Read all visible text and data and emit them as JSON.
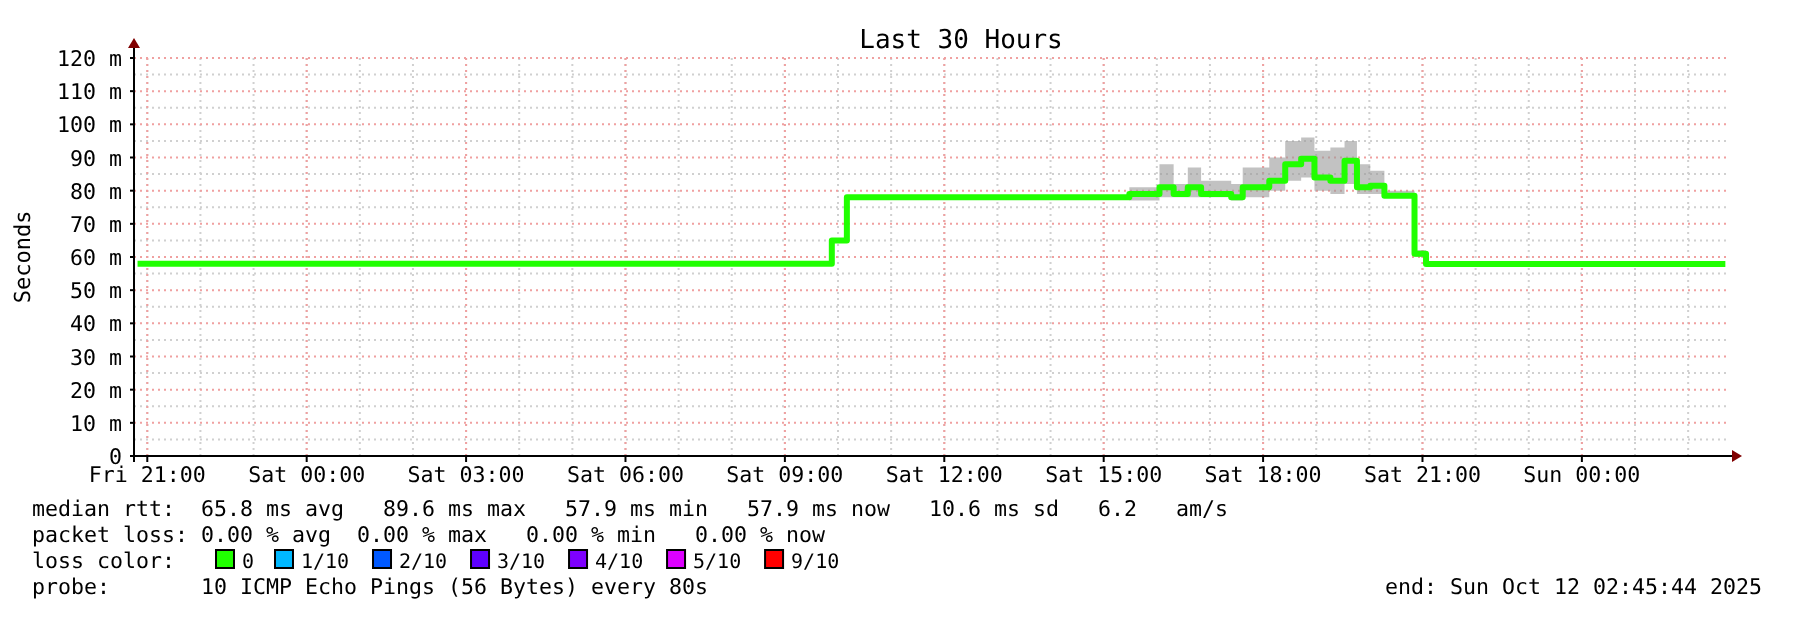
{
  "chart_data": {
    "type": "step",
    "title": "Last 30 Hours",
    "ylabel": "Seconds",
    "x": [
      "2025-10-10T20:49",
      "2025-10-11T09:53",
      "2025-10-11T10:10",
      "2025-10-11T15:29",
      "2025-10-11T16:03",
      "2025-10-11T16:19",
      "2025-10-11T16:35",
      "2025-10-11T16:50",
      "2025-10-11T17:24",
      "2025-10-11T17:37",
      "2025-10-11T18:07",
      "2025-10-11T18:25",
      "2025-10-11T18:43",
      "2025-10-11T18:58",
      "2025-10-11T19:16",
      "2025-10-11T19:32",
      "2025-10-11T19:46",
      "2025-10-11T20:01",
      "2025-10-11T20:17",
      "2025-10-11T20:51",
      "2025-10-11T21:04",
      "2025-10-12T02:42"
    ],
    "series": [
      {
        "name": "0",
        "color": "#20ff00",
        "values": [
          58,
          65,
          78,
          79,
          81,
          79,
          81,
          79,
          78,
          81,
          83,
          88,
          89.6,
          84,
          83,
          89,
          81,
          81.5,
          78.5,
          61,
          57.9,
          57.9
        ],
        "lower": [
          58,
          65,
          78,
          77,
          78,
          78,
          78,
          78,
          77,
          78,
          80,
          83,
          84,
          80,
          79,
          82,
          79,
          79,
          78,
          60,
          57.9,
          57.9
        ],
        "upper": [
          58,
          65,
          78,
          81,
          88,
          82,
          87,
          83,
          82,
          87,
          90,
          95,
          96,
          92,
          93,
          95,
          88,
          86,
          80,
          62,
          57.9,
          57.9
        ]
      },
      {
        "name": "1/10",
        "color": "#00b8ff",
        "values": [
          null,
          null,
          null,
          null,
          null,
          null,
          null,
          null,
          null,
          null,
          null,
          null,
          null,
          null,
          null,
          null,
          null,
          null,
          null,
          null,
          null,
          null
        ]
      },
      {
        "name": "2/10",
        "color": "#0059ff",
        "values": [
          null,
          null,
          null,
          null,
          null,
          null,
          null,
          null,
          null,
          null,
          null,
          null,
          null,
          null,
          null,
          null,
          null,
          null,
          null,
          null,
          null,
          null
        ]
      },
      {
        "name": "3/10",
        "color": "#5e00ff",
        "values": [
          null,
          null,
          null,
          null,
          null,
          null,
          null,
          null,
          null,
          null,
          null,
          null,
          null,
          null,
          null,
          null,
          null,
          null,
          null,
          null,
          null,
          null
        ]
      },
      {
        "name": "4/10",
        "color": "#7e00ff",
        "values": [
          null,
          null,
          null,
          null,
          null,
          null,
          null,
          null,
          null,
          null,
          null,
          null,
          null,
          null,
          null,
          null,
          null,
          null,
          null,
          null,
          null,
          null
        ]
      },
      {
        "name": "5/10",
        "color": "#dd00ff",
        "values": [
          null,
          null,
          null,
          null,
          null,
          null,
          null,
          null,
          null,
          null,
          null,
          null,
          null,
          null,
          null,
          null,
          null,
          null,
          null,
          null,
          null,
          null
        ]
      },
      {
        "name": "9/10",
        "color": "#ff0000",
        "values": [
          null,
          null,
          null,
          null,
          null,
          null,
          null,
          null,
          null,
          null,
          null,
          null,
          null,
          null,
          null,
          null,
          null,
          null,
          null,
          null,
          null,
          null
        ]
      }
    ],
    "legend_title": "loss color:",
    "legend": "bottom",
    "xlim": [
      "2025-10-10T20:45",
      "2025-10-12T02:45"
    ],
    "xticks": [
      {
        "value": "2025-10-10T21:00",
        "label": "Fri 21:00"
      },
      {
        "value": "2025-10-11T00:00",
        "label": "Sat 00:00"
      },
      {
        "value": "2025-10-11T03:00",
        "label": "Sat 03:00"
      },
      {
        "value": "2025-10-11T06:00",
        "label": "Sat 06:00"
      },
      {
        "value": "2025-10-11T09:00",
        "label": "Sat 09:00"
      },
      {
        "value": "2025-10-11T12:00",
        "label": "Sat 12:00"
      },
      {
        "value": "2025-10-11T15:00",
        "label": "Sat 15:00"
      },
      {
        "value": "2025-10-11T18:00",
        "label": "Sat 18:00"
      },
      {
        "value": "2025-10-11T21:00",
        "label": "Sat 21:00"
      },
      {
        "value": "2025-10-12T00:00",
        "label": "Sun 00:00"
      }
    ],
    "ylim": [
      0,
      120
    ],
    "yticks": [
      0,
      {
        "value": 10,
        "label": "10 m"
      },
      {
        "value": 20,
        "label": "20 m"
      },
      {
        "value": 30,
        "label": "30 m"
      },
      {
        "value": 40,
        "label": "40 m"
      },
      {
        "value": 50,
        "label": "50 m"
      },
      {
        "value": 60,
        "label": "60 m"
      },
      {
        "value": 70,
        "label": "70 m"
      },
      {
        "value": 80,
        "label": "80 m"
      },
      {
        "value": 90,
        "label": "90 m"
      },
      {
        "value": 100,
        "label": "100 m"
      },
      {
        "value": 110,
        "label": "110 m"
      },
      {
        "value": 120,
        "label": "120 m"
      }
    ],
    "grid": true,
    "annotations": [
      "median rtt:  65.8 ms avg   89.6 ms max   57.9 ms min   57.9 ms now   10.6 ms sd   6.2   am/s",
      "packet loss: 0.00 % avg  0.00 % max   0.00 % min   0.00 % now",
      "probe:       10 ICMP Echo Pings (56 Bytes) every 80s",
      "end: Sun Oct 12 02:45:44 2025"
    ]
  }
}
